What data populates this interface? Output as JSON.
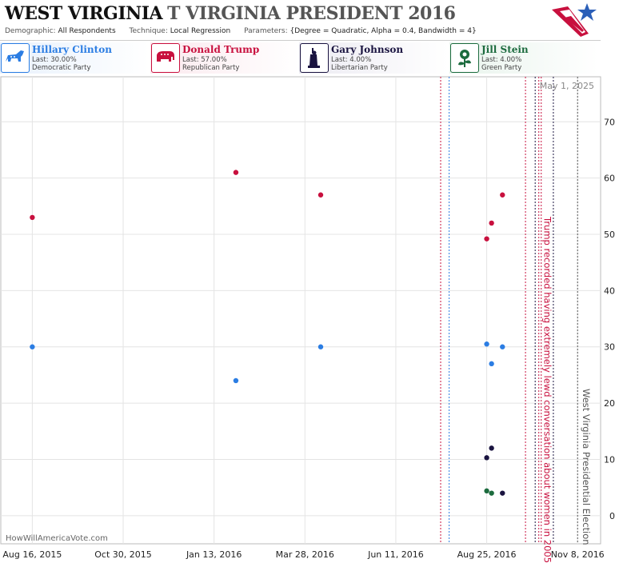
{
  "header": {
    "title_main": "WEST VIRGINIA",
    "title_sub": "T VIRGINIA PRESIDENT 2016",
    "demographic_label": "Demographic:",
    "demographic_value": "All Respondents",
    "technique_label": "Technique:",
    "technique_value": "Local Regression",
    "parameters_label": "Parameters:",
    "parameters_value": "{Degree = Quadratic, Alpha = 0.4, Bandwidth = 4}"
  },
  "candidates": [
    {
      "name": "Hillary Clinton",
      "last": "Last: 30.00%",
      "party": "Democratic Party",
      "color": "#2b7de3",
      "bg": "#e8f1fc",
      "icon": "donkey-icon"
    },
    {
      "name": "Donald Trump",
      "last": "Last: 57.00%",
      "party": "Republican Party",
      "color": "#c8103e",
      "bg": "#fbe9ee",
      "icon": "elephant-icon"
    },
    {
      "name": "Gary Johnson",
      "last": "Last: 4.00%",
      "party": "Libertarian Party",
      "color": "#1a1440",
      "bg": "#ecebf2",
      "icon": "statue-of-liberty-icon"
    },
    {
      "name": "Jill Stein",
      "last": "Last: 4.00%",
      "party": "Green Party",
      "color": "#1c6b3e",
      "bg": "#e8f3ec",
      "icon": "rose-icon"
    }
  ],
  "date_stamp": "May 1, 2025",
  "watermark": "HowWillAmericaVote.com",
  "chart_data": {
    "type": "scatter",
    "x_ticks": [
      "Aug 16, 2015",
      "Oct 30, 2015",
      "Jan 13, 2016",
      "Mar 28, 2016",
      "Jun 11, 2016",
      "Aug 25, 2016",
      "Nov 8, 2016"
    ],
    "y_ticks": [
      0,
      10,
      20,
      30,
      40,
      50,
      60,
      70
    ],
    "xlim": [
      "2015-07-21",
      "2016-11-27"
    ],
    "ylim": [
      -5,
      78
    ],
    "grid": true,
    "series": [
      {
        "name": "Hillary Clinton",
        "color": "#2b7de3",
        "points": [
          {
            "x": "2015-08-16",
            "y": 30
          },
          {
            "x": "2016-01-31",
            "y": 24
          },
          {
            "x": "2016-04-10",
            "y": 30
          },
          {
            "x": "2016-08-25",
            "y": 30.5
          },
          {
            "x": "2016-08-29",
            "y": 27
          },
          {
            "x": "2016-09-07",
            "y": 30
          }
        ]
      },
      {
        "name": "Donald Trump",
        "color": "#c8103e",
        "points": [
          {
            "x": "2015-08-16",
            "y": 53
          },
          {
            "x": "2016-01-31",
            "y": 61
          },
          {
            "x": "2016-04-10",
            "y": 57
          },
          {
            "x": "2016-08-25",
            "y": 49.2
          },
          {
            "x": "2016-08-29",
            "y": 52
          },
          {
            "x": "2016-09-07",
            "y": 57
          }
        ]
      },
      {
        "name": "Gary Johnson",
        "color": "#1a1440",
        "points": [
          {
            "x": "2016-08-25",
            "y": 10.3
          },
          {
            "x": "2016-08-29",
            "y": 12
          },
          {
            "x": "2016-09-07",
            "y": 4
          }
        ]
      },
      {
        "name": "Jill Stein",
        "color": "#1c6b3e",
        "points": [
          {
            "x": "2016-08-25",
            "y": 4.4
          },
          {
            "x": "2016-08-29",
            "y": 4
          }
        ]
      }
    ],
    "event_lines": [
      {
        "x": "2016-07-18",
        "color": "#c8103e"
      },
      {
        "x": "2016-07-25",
        "color": "#2b7de3"
      },
      {
        "x": "2016-09-26",
        "color": "#c8103e"
      },
      {
        "x": "2016-10-04",
        "color": "#1a1440"
      },
      {
        "x": "2016-10-07",
        "color": "#c8103e",
        "label": "Trump recorded having extremely lewd conversation about women in 2005"
      },
      {
        "x": "2016-10-09",
        "color": "#c8103e"
      },
      {
        "x": "2016-10-19",
        "color": "#1a1440"
      },
      {
        "x": "2016-11-08",
        "color": "#555555",
        "label": "West Virginia Presidential Election"
      }
    ]
  }
}
